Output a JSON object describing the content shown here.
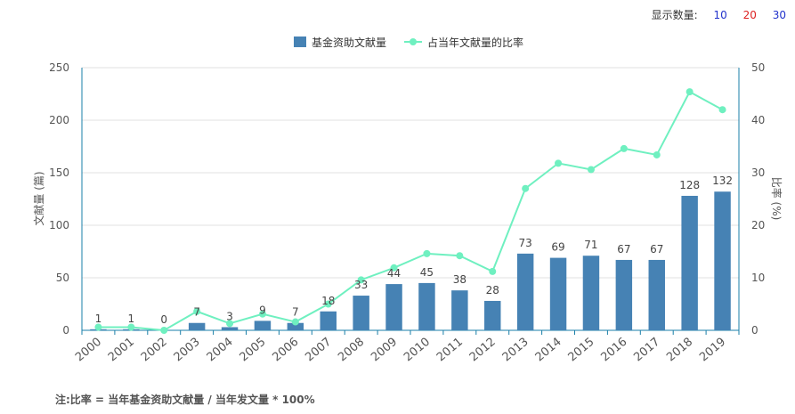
{
  "controls": {
    "display_count_label": "显示数量:",
    "options": [
      {
        "label": "10",
        "color": "#2233cc"
      },
      {
        "label": "20",
        "color": "#dd2222"
      },
      {
        "label": "30",
        "color": "#2233cc"
      }
    ]
  },
  "footnote": "注:比率 = 当年基金资助文献量 / 当年发文量 * 100%",
  "chart_data": {
    "type": "bar",
    "categories": [
      "2000",
      "2001",
      "2002",
      "2003",
      "2004",
      "2005",
      "2006",
      "2007",
      "2008",
      "2009",
      "2010",
      "2011",
      "2012",
      "2013",
      "2014",
      "2015",
      "2016",
      "2017",
      "2018",
      "2019"
    ],
    "series": [
      {
        "name": "基金资助文献量",
        "type": "bar",
        "axis": "left",
        "color": "#4682b4",
        "values": [
          1,
          1,
          0,
          7,
          3,
          9,
          7,
          18,
          33,
          44,
          45,
          38,
          28,
          73,
          69,
          71,
          67,
          67,
          128,
          132
        ]
      },
      {
        "name": "占当年文献量的比率",
        "type": "line",
        "axis": "right",
        "color": "#6ff0c0",
        "values": [
          0.6,
          0.6,
          0,
          3.6,
          1.3,
          3.1,
          1.6,
          5,
          9.6,
          11.9,
          14.6,
          14.2,
          11.2,
          27,
          31.8,
          30.6,
          34.6,
          33.4,
          45.4,
          42
        ]
      }
    ],
    "ylabel": "文献量 (篇)",
    "y2label": "比率 (%)",
    "ylim": [
      0,
      250
    ],
    "y2lim": [
      0,
      50
    ],
    "yticks": [
      0,
      50,
      100,
      150,
      200,
      250
    ],
    "y2ticks": [
      0,
      10,
      20,
      30,
      40,
      50
    ],
    "legend_position": "top-center",
    "grid": true
  }
}
